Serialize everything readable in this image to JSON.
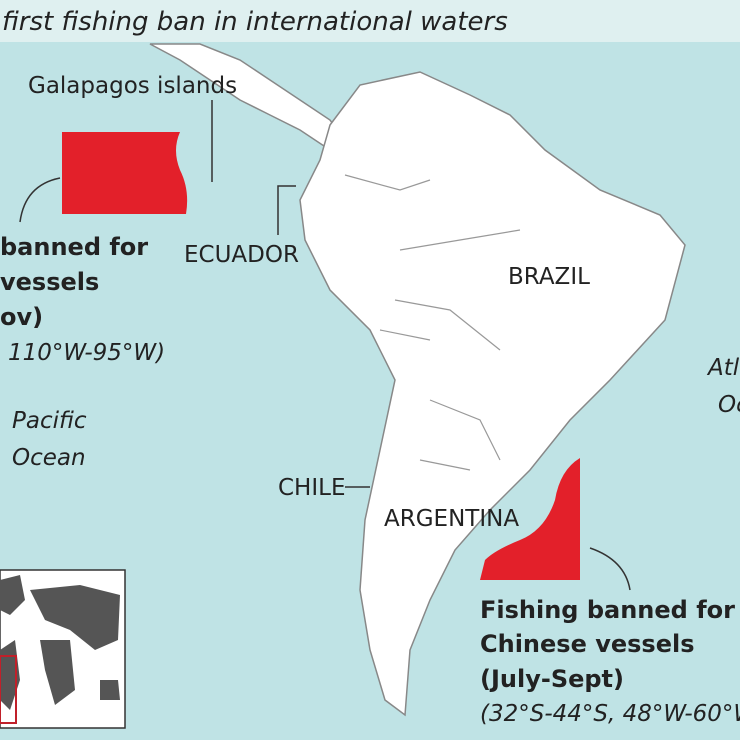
{
  "header": {
    "title": "first fishing ban in international waters"
  },
  "labels": {
    "galapagos": "Galapagos islands",
    "ecuador": "ECUADOR",
    "brazil": "BRAZIL",
    "chile": "CHILE",
    "argentina": "ARGENTINA",
    "pacific": [
      "Pacific",
      "Ocean"
    ],
    "atlantic": [
      "Atl",
      "Oc"
    ]
  },
  "callouts": {
    "pacific": [
      "banned for",
      "vessels",
      "ov)",
      "110°W-95°W)"
    ],
    "atlantic": [
      "Fishing banned for",
      "Chinese vessels",
      "(July-Sept)",
      "(32°S-44°S, 48°W-60°W"
    ]
  }
}
